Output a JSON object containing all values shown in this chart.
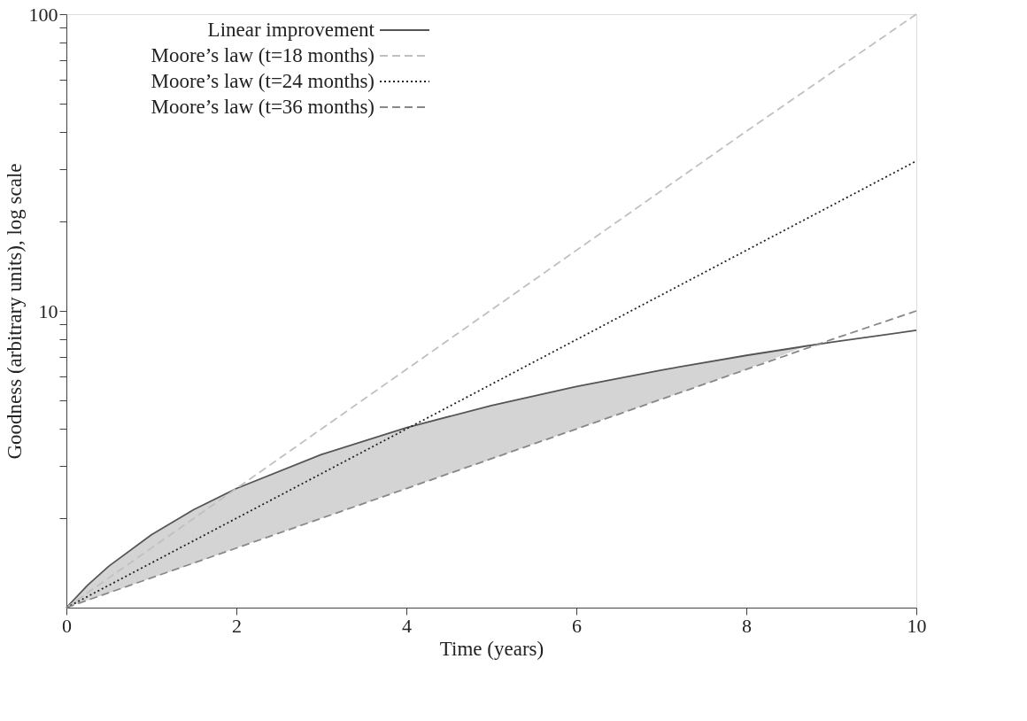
{
  "chart_data": {
    "type": "line",
    "xlabel": "Time (years)",
    "ylabel": "Goodness (arbitrary units), log scale",
    "log": "y",
    "grid": false,
    "legend": "top left",
    "marker": "none",
    "xlim": [
      0,
      10
    ],
    "xticks": [
      0,
      2,
      4,
      6,
      8,
      10
    ],
    "ylim": [
      1,
      100
    ],
    "yticks": [
      {
        "value": 2,
        "label": null
      },
      {
        "value": 3,
        "label": null
      },
      {
        "value": 4,
        "label": null
      },
      {
        "value": 5,
        "label": null
      },
      {
        "value": 6,
        "label": null
      },
      {
        "value": 7,
        "label": null
      },
      {
        "value": 8,
        "label": null
      },
      {
        "value": 9,
        "label": null
      },
      10,
      {
        "value": 20,
        "label": null
      },
      {
        "value": 30,
        "label": null
      },
      {
        "value": 40,
        "label": null
      },
      {
        "value": 50,
        "label": null
      },
      {
        "value": 60,
        "label": null
      },
      {
        "value": 70,
        "label": null
      },
      {
        "value": 80,
        "label": null
      },
      {
        "value": 90,
        "label": null
      },
      100
    ],
    "series": [
      {
        "name": "Linear improvement",
        "color": "#555555",
        "line_style": "solid",
        "x": [
          0,
          0.25,
          0.5,
          1,
          1.5,
          2,
          3,
          4,
          5,
          6,
          7,
          8,
          8.7,
          9,
          10
        ],
        "values": [
          1,
          1.19,
          1.38,
          1.76,
          2.14,
          2.52,
          3.28,
          4.04,
          4.8,
          5.56,
          6.32,
          7.08,
          7.61,
          7.84,
          8.6
        ],
        "lower": [
          1,
          1.06,
          1.12,
          1.26,
          1.41,
          1.59,
          2,
          2.52,
          3.17,
          4,
          5.04,
          6.35,
          7.61,
          null,
          null
        ],
        "upper": [
          1,
          1.19,
          1.38,
          1.76,
          2.14,
          2.52,
          3.28,
          4.04,
          4.8,
          5.56,
          6.32,
          7.08,
          7.61,
          null,
          null
        ]
      },
      {
        "name": "Moore’s law (t=18 months)",
        "color": "#c0c0c0",
        "line_style": "dashed",
        "x": [
          0,
          2,
          4,
          6,
          8,
          10
        ],
        "values": [
          1,
          2.52,
          6.35,
          16,
          40.3,
          100
        ]
      },
      {
        "name": "Moore’s law (t=24 months)",
        "color": "#222222",
        "line_style": "dotted",
        "x": [
          0,
          2,
          4,
          6,
          8,
          10
        ],
        "values": [
          1,
          2,
          4,
          8,
          16,
          32
        ]
      },
      {
        "name": "Moore’s law (t=36 months)",
        "color": "#888888",
        "line_style": "dashed",
        "x": [
          0,
          3,
          6,
          9,
          10
        ],
        "values": [
          1,
          2,
          4,
          8,
          10
        ]
      }
    ]
  }
}
